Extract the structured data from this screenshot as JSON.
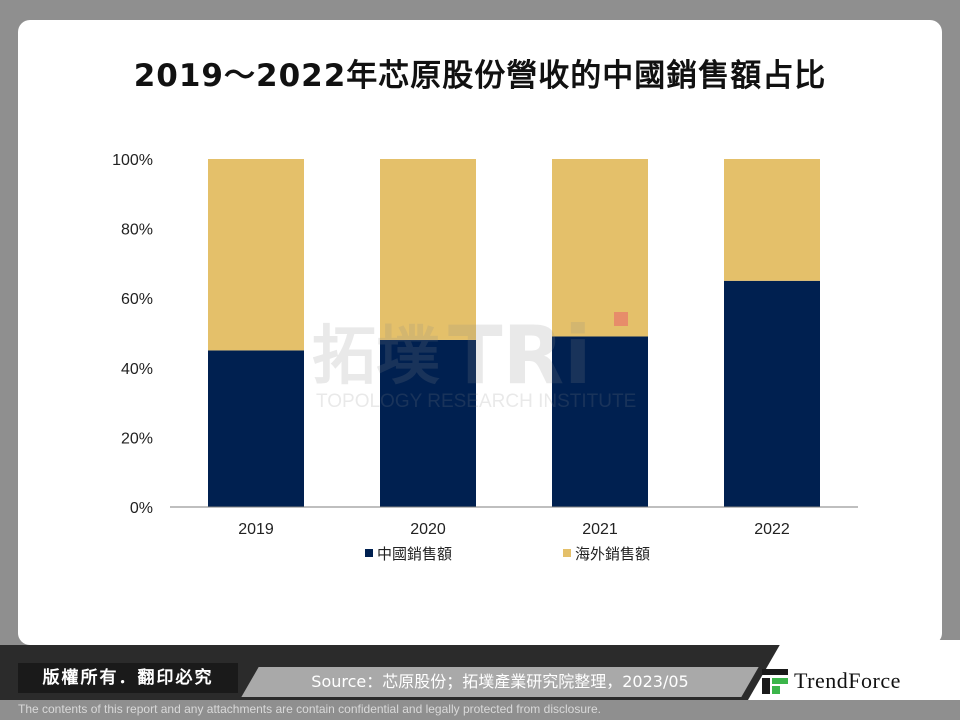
{
  "page": {
    "title": "2019～2022年芯原股份營收的中國銷售額占比",
    "copyright": "版權所有．翻印必究",
    "source": "Source：芯原股份；拓墣產業研究院整理，2023/05",
    "brand": "TrendForce",
    "disclaimer": "The contents of this report and any attachments are contain confidential and legally protected from disclosure.",
    "watermark_cn": "拓墣",
    "watermark_logo": "TRi",
    "watermark_en": "TOPOLOGY RESEARCH INSTITUTE"
  },
  "chart_data": {
    "type": "bar",
    "stacked": true,
    "title": "2019～2022年芯原股份營收的中國銷售額占比",
    "categories": [
      "2019",
      "2020",
      "2021",
      "2022"
    ],
    "series": [
      {
        "name": "中國銷售額",
        "values": [
          45,
          48,
          49,
          65
        ],
        "color": "#002050"
      },
      {
        "name": "海外銷售額",
        "values": [
          55,
          52,
          51,
          35
        ],
        "color": "#e4c06a"
      }
    ],
    "ylim": [
      0,
      100
    ],
    "yticks": [
      "0%",
      "20%",
      "40%",
      "60%",
      "80%",
      "100%"
    ],
    "xlabel": "",
    "ylabel": "",
    "grid": false,
    "legend": "bottom"
  }
}
